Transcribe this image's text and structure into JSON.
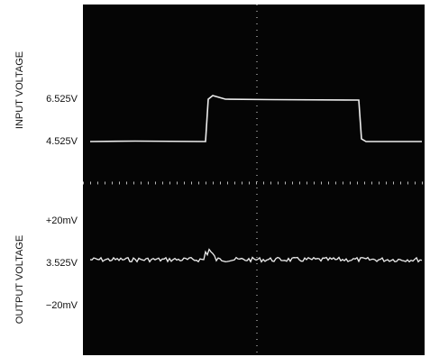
{
  "axis_labels": {
    "top": "INPUT VOLTAGE",
    "bottom": "OUTPUT VOLTAGE"
  },
  "level_labels": [
    "6.525V",
    "4.525V",
    "+20mV",
    "3.525V",
    "−20mV"
  ]
}
